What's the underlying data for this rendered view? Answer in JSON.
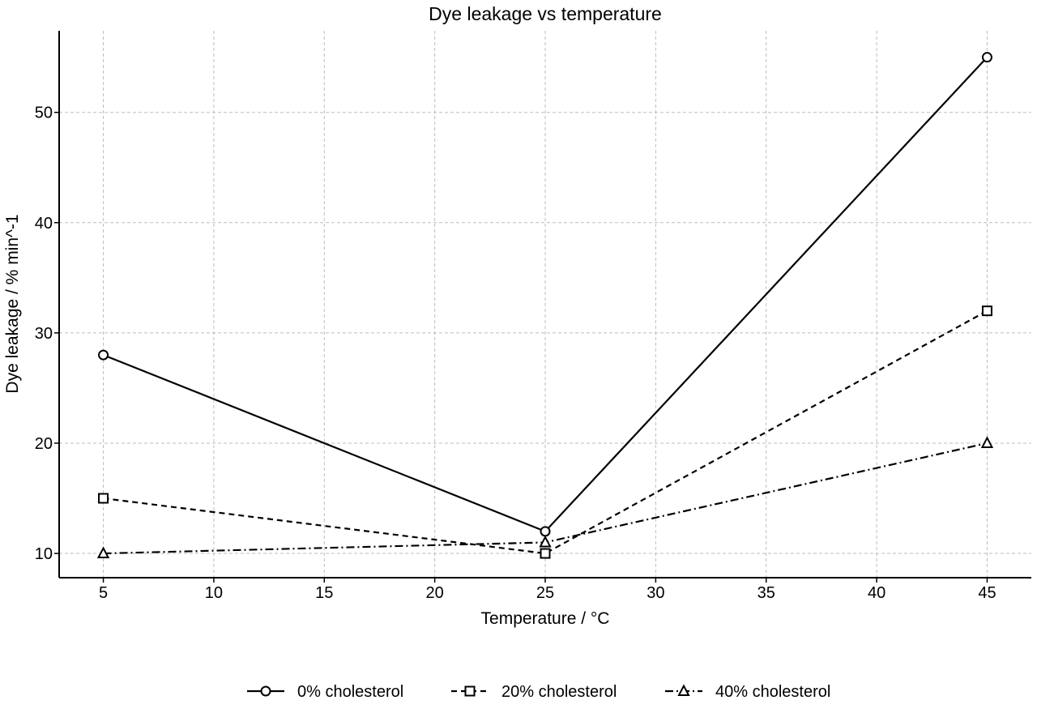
{
  "chart_data": {
    "type": "line",
    "title": "Dye leakage vs temperature",
    "xlabel": "Temperature / °C",
    "ylabel": "Dye leakage / % min^-1",
    "xlim": [
      3,
      47
    ],
    "ylim": [
      7.8,
      57.4
    ],
    "x_ticks": [
      5,
      10,
      15,
      20,
      25,
      30,
      35,
      40,
      45
    ],
    "y_ticks": [
      10,
      20,
      30,
      40,
      50
    ],
    "grid": true,
    "legend_position": "bottom-center",
    "series": [
      {
        "name": "0% cholesterol",
        "x": [
          5,
          25,
          45
        ],
        "values": [
          28,
          12,
          55
        ],
        "marker": "circle",
        "line_style": "solid"
      },
      {
        "name": "20% cholesterol",
        "x": [
          5,
          25,
          45
        ],
        "values": [
          15,
          10,
          32
        ],
        "marker": "square",
        "line_style": "dashed"
      },
      {
        "name": "40% cholesterol",
        "x": [
          5,
          25,
          45
        ],
        "values": [
          10,
          11,
          20
        ],
        "marker": "triangle",
        "line_style": "dashdot"
      }
    ],
    "colors": {
      "line": "#000000",
      "marker_fill": "#ffffff",
      "grid": "#bdbdbd"
    }
  }
}
